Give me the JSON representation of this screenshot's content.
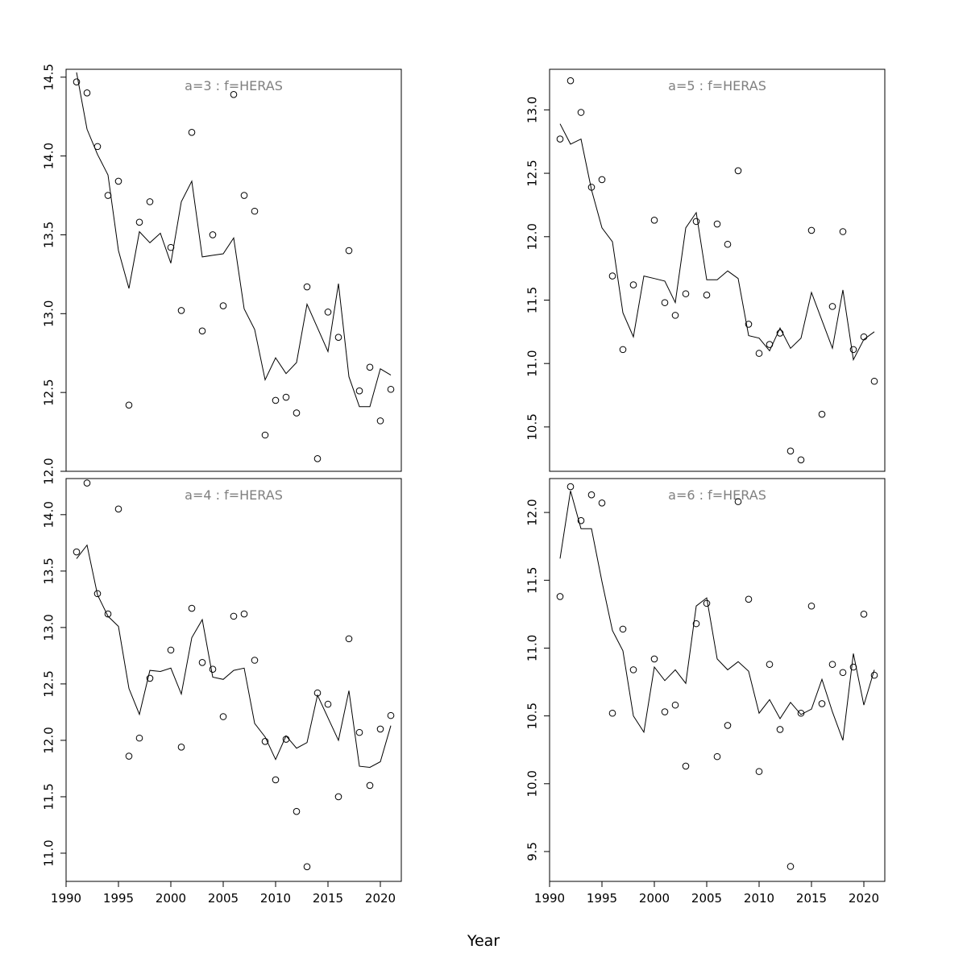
{
  "figure": {
    "xlabel": "Year"
  },
  "chart_data": [
    {
      "type": "scatter",
      "title": "a=3  :  f=HERAS",
      "x": [
        1991,
        1992,
        1993,
        1994,
        1995,
        1996,
        1997,
        1998,
        1999,
        2000,
        2001,
        2002,
        2003,
        2004,
        2005,
        2006,
        2007,
        2008,
        2009,
        2010,
        2011,
        2012,
        2013,
        2014,
        2015,
        2016,
        2017,
        2018,
        2019,
        2020,
        2021
      ],
      "points": [
        14.47,
        14.4,
        14.06,
        13.75,
        13.84,
        12.42,
        13.58,
        13.71,
        null,
        13.42,
        13.02,
        14.15,
        12.89,
        13.5,
        13.05,
        14.39,
        13.75,
        13.65,
        12.23,
        12.45,
        12.47,
        12.37,
        13.17,
        12.08,
        13.01,
        12.85,
        13.4,
        12.51,
        12.66,
        12.32,
        12.52
      ],
      "line": [
        14.53,
        14.17,
        14.01,
        13.88,
        13.4,
        13.16,
        13.52,
        13.45,
        13.51,
        13.32,
        13.71,
        13.84,
        13.36,
        13.37,
        13.38,
        13.48,
        13.03,
        12.9,
        12.58,
        12.72,
        12.62,
        12.69,
        13.06,
        12.91,
        12.76,
        13.19,
        12.6,
        12.41,
        12.41,
        12.65,
        12.61
      ],
      "xlim": [
        1990,
        2022
      ],
      "ylim": [
        12.0,
        14.55
      ],
      "xticks": [
        1990,
        1995,
        2000,
        2005,
        2010,
        2015,
        2020
      ],
      "yticks": [
        "12.0",
        "12.5",
        "13.0",
        "13.5",
        "14.0",
        "14.5"
      ],
      "show_xaxis": false
    },
    {
      "type": "scatter",
      "title": "a=5  :  f=HERAS",
      "x": [
        1991,
        1992,
        1993,
        1994,
        1995,
        1996,
        1997,
        1998,
        1999,
        2000,
        2001,
        2002,
        2003,
        2004,
        2005,
        2006,
        2007,
        2008,
        2009,
        2010,
        2011,
        2012,
        2013,
        2014,
        2015,
        2016,
        2017,
        2018,
        2019,
        2020,
        2021
      ],
      "points": [
        12.77,
        13.23,
        12.98,
        12.39,
        12.45,
        11.69,
        11.11,
        11.62,
        null,
        12.13,
        11.48,
        11.38,
        11.55,
        12.12,
        11.54,
        12.1,
        11.94,
        12.52,
        11.31,
        11.08,
        11.15,
        11.24,
        10.31,
        10.24,
        12.05,
        10.6,
        11.45,
        12.04,
        11.11,
        11.21,
        10.86
      ],
      "line": [
        12.89,
        12.73,
        12.77,
        12.37,
        12.07,
        11.96,
        11.4,
        11.21,
        11.69,
        11.67,
        11.65,
        11.48,
        12.07,
        12.19,
        11.66,
        11.66,
        11.73,
        11.67,
        11.22,
        11.2,
        11.1,
        11.28,
        11.12,
        11.2,
        11.56,
        11.34,
        11.12,
        11.58,
        11.03,
        11.19,
        11.25
      ],
      "xlim": [
        1990,
        2022
      ],
      "ylim": [
        10.15,
        13.32
      ],
      "xticks": [
        1990,
        1995,
        2000,
        2005,
        2010,
        2015,
        2020
      ],
      "yticks": [
        "10.5",
        "11.0",
        "11.5",
        "12.0",
        "12.5",
        "13.0"
      ],
      "show_xaxis": false
    },
    {
      "type": "scatter",
      "title": "a=4  :  f=HERAS",
      "x": [
        1991,
        1992,
        1993,
        1994,
        1995,
        1996,
        1997,
        1998,
        1999,
        2000,
        2001,
        2002,
        2003,
        2004,
        2005,
        2006,
        2007,
        2008,
        2009,
        2010,
        2011,
        2012,
        2013,
        2014,
        2015,
        2016,
        2017,
        2018,
        2019,
        2020,
        2021
      ],
      "points": [
        13.67,
        14.28,
        13.3,
        13.12,
        14.05,
        11.86,
        12.02,
        12.55,
        null,
        12.8,
        11.94,
        13.17,
        12.69,
        12.63,
        12.21,
        13.1,
        13.12,
        12.71,
        11.99,
        11.65,
        12.01,
        11.37,
        10.88,
        12.42,
        12.32,
        11.5,
        12.9,
        12.07,
        11.6,
        12.1,
        12.22
      ],
      "line": [
        13.61,
        13.73,
        13.29,
        13.1,
        13.01,
        12.46,
        12.23,
        12.62,
        12.61,
        12.64,
        12.41,
        12.91,
        13.07,
        12.56,
        12.54,
        12.62,
        12.64,
        12.15,
        12.03,
        11.83,
        12.04,
        11.93,
        11.98,
        12.4,
        12.2,
        12.0,
        12.44,
        11.77,
        11.76,
        11.81,
        12.13
      ],
      "xlim": [
        1990,
        2022
      ],
      "ylim": [
        10.75,
        14.32
      ],
      "xticks": [
        1990,
        1995,
        2000,
        2005,
        2010,
        2015,
        2020
      ],
      "yticks": [
        "11.0",
        "11.5",
        "12.0",
        "12.5",
        "13.0",
        "13.5",
        "14.0"
      ],
      "show_xaxis": true
    },
    {
      "type": "scatter",
      "title": "a=6  :  f=HERAS",
      "x": [
        1991,
        1992,
        1993,
        1994,
        1995,
        1996,
        1997,
        1998,
        1999,
        2000,
        2001,
        2002,
        2003,
        2004,
        2005,
        2006,
        2007,
        2008,
        2009,
        2010,
        2011,
        2012,
        2013,
        2014,
        2015,
        2016,
        2017,
        2018,
        2019,
        2020,
        2021
      ],
      "points": [
        11.38,
        12.19,
        11.94,
        12.13,
        12.07,
        10.52,
        11.14,
        10.84,
        null,
        10.92,
        10.53,
        10.58,
        10.13,
        11.18,
        11.33,
        10.2,
        10.43,
        12.08,
        11.36,
        10.09,
        10.88,
        10.4,
        9.39,
        10.52,
        11.31,
        10.59,
        10.88,
        10.82,
        10.86,
        11.25,
        10.8
      ],
      "line": [
        11.66,
        12.16,
        11.88,
        11.88,
        11.49,
        11.13,
        10.98,
        10.5,
        10.38,
        10.86,
        10.76,
        10.84,
        10.74,
        11.31,
        11.37,
        10.92,
        10.84,
        10.9,
        10.83,
        10.52,
        10.62,
        10.48,
        10.6,
        10.51,
        10.55,
        10.77,
        10.53,
        10.32,
        10.96,
        10.58,
        10.84
      ],
      "xlim": [
        1990,
        2022
      ],
      "ylim": [
        9.28,
        12.25
      ],
      "xticks": [
        1990,
        1995,
        2000,
        2005,
        2010,
        2015,
        2020
      ],
      "yticks": [
        "9.5",
        "10.0",
        "10.5",
        "11.0",
        "11.5",
        "12.0"
      ],
      "show_xaxis": true
    }
  ]
}
